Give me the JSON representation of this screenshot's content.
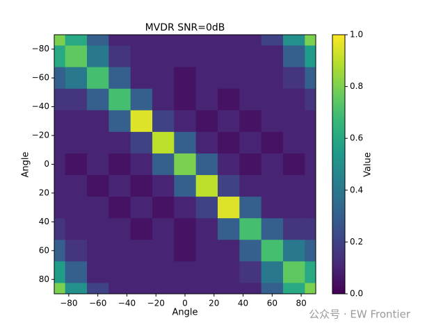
{
  "chart_data": {
    "type": "heatmap",
    "title": "MVDR SNR=0dB",
    "x_label": "Angle",
    "y_label": "Angle",
    "colorbar_label": "Value",
    "colormap": "viridis",
    "watermark": "公众号 · EW Frontier",
    "x": [
      -90,
      -75,
      -60,
      -45,
      -30,
      -15,
      0,
      15,
      30,
      45,
      60,
      75,
      90
    ],
    "y": [
      -90,
      -75,
      -60,
      -45,
      -30,
      -15,
      0,
      15,
      30,
      45,
      60,
      75,
      90
    ],
    "values": [
      [
        0.8,
        0.6,
        0.3,
        0.1,
        0.1,
        0.1,
        0.1,
        0.1,
        0.1,
        0.1,
        0.2,
        0.5,
        0.8
      ],
      [
        0.6,
        0.75,
        0.4,
        0.15,
        0.1,
        0.1,
        0.1,
        0.1,
        0.1,
        0.1,
        0.1,
        0.3,
        0.55
      ],
      [
        0.3,
        0.4,
        0.7,
        0.3,
        0.1,
        0.1,
        0.05,
        0.1,
        0.1,
        0.1,
        0.1,
        0.15,
        0.3
      ],
      [
        0.15,
        0.15,
        0.3,
        0.7,
        0.3,
        0.1,
        0.05,
        0.1,
        0.05,
        0.1,
        0.1,
        0.1,
        0.15
      ],
      [
        0.1,
        0.1,
        0.1,
        0.3,
        0.95,
        0.2,
        0.1,
        0.05,
        0.1,
        0.05,
        0.1,
        0.1,
        0.1
      ],
      [
        0.1,
        0.1,
        0.1,
        0.1,
        0.2,
        0.9,
        0.3,
        0.1,
        0.05,
        0.1,
        0.05,
        0.1,
        0.1
      ],
      [
        0.1,
        0.05,
        0.1,
        0.05,
        0.1,
        0.3,
        0.8,
        0.3,
        0.1,
        0.05,
        0.1,
        0.05,
        0.1
      ],
      [
        0.1,
        0.1,
        0.05,
        0.1,
        0.05,
        0.1,
        0.3,
        0.9,
        0.2,
        0.1,
        0.1,
        0.1,
        0.1
      ],
      [
        0.1,
        0.1,
        0.1,
        0.05,
        0.1,
        0.05,
        0.1,
        0.2,
        0.95,
        0.3,
        0.1,
        0.1,
        0.1
      ],
      [
        0.15,
        0.1,
        0.1,
        0.1,
        0.05,
        0.1,
        0.05,
        0.1,
        0.3,
        0.7,
        0.3,
        0.15,
        0.15
      ],
      [
        0.3,
        0.15,
        0.1,
        0.1,
        0.1,
        0.1,
        0.05,
        0.1,
        0.1,
        0.3,
        0.7,
        0.4,
        0.3
      ],
      [
        0.55,
        0.3,
        0.1,
        0.1,
        0.1,
        0.1,
        0.1,
        0.1,
        0.1,
        0.15,
        0.4,
        0.75,
        0.6
      ],
      [
        0.8,
        0.5,
        0.2,
        0.1,
        0.1,
        0.1,
        0.1,
        0.1,
        0.1,
        0.1,
        0.3,
        0.6,
        0.8
      ]
    ],
    "xlim": [
      -90,
      90
    ],
    "ylim": [
      -90,
      90
    ],
    "y_inverted": true,
    "xticks": [
      {
        "value": -80,
        "label": "−80"
      },
      {
        "value": -60,
        "label": "−60"
      },
      {
        "value": -40,
        "label": "−40"
      },
      {
        "value": -20,
        "label": "−20"
      },
      0,
      20,
      40,
      60,
      80
    ],
    "yticks": [
      {
        "value": -80,
        "label": "−80"
      },
      {
        "value": -60,
        "label": "−60"
      },
      {
        "value": -40,
        "label": "−40"
      },
      {
        "value": -20,
        "label": "−20"
      },
      0,
      20,
      40,
      60,
      80
    ],
    "clim": [
      0,
      1
    ],
    "cticks": [
      {
        "value": 0,
        "label": "0.0"
      },
      0.2,
      0.4,
      0.6,
      0.8,
      {
        "value": 1,
        "label": "1.0"
      }
    ]
  }
}
